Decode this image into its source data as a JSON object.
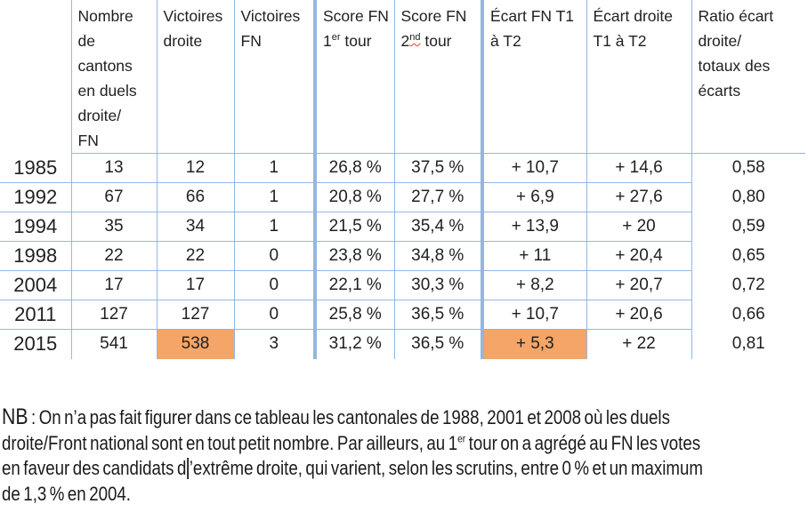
{
  "theme": {
    "border": "#92b7e2",
    "highlight": "#f5a567",
    "text": "#212121",
    "squiggle": "#e03c2d"
  },
  "table": {
    "columns": [
      {
        "id": "cantons-duels",
        "pre": "Nombre\nde\ncantons\nen duels\ndroite/\nFN"
      },
      {
        "id": "victoires-droite",
        "pre": "Victoires\ndroite"
      },
      {
        "id": "victoires-fn",
        "pre": "Victoires\nFN"
      },
      {
        "id": "score-fn-t1",
        "pre": "Score FN\n1",
        "sup": "er",
        "post": " tour"
      },
      {
        "id": "score-fn-t2",
        "pre": "Score FN\n2",
        "sup": "nd",
        "post": " tour",
        "sup_error": true
      },
      {
        "id": "ecart-fn-t1-t2",
        "pre": "Écart FN T1\nà T2"
      },
      {
        "id": "ecart-droite-t1-t2",
        "pre": "Écart droite\nT1 à T2"
      },
      {
        "id": "ratio-ecart",
        "pre": "Ratio écart\ndroite/\ntotaux des\nécarts"
      }
    ],
    "rows": [
      {
        "year": "1985",
        "cells": [
          "13",
          "12",
          "1",
          "26,8 %",
          "37,5 %",
          "+ 10,7",
          "+ 14,6",
          "0,58"
        ],
        "highlights": []
      },
      {
        "year": "1992",
        "cells": [
          "67",
          "66",
          "1",
          "20,8 %",
          "27,7 %",
          "+ 6,9",
          "+ 27,6",
          "0,80"
        ],
        "highlights": []
      },
      {
        "year": "1994",
        "cells": [
          "35",
          "34",
          "1",
          "21,5 %",
          "35,4 %",
          "+ 13,9",
          "+ 20",
          "0,59"
        ],
        "highlights": []
      },
      {
        "year": "1998",
        "cells": [
          "22",
          "22",
          "0",
          "23,8 %",
          "34,8 %",
          "+ 11",
          "+ 20,4",
          "0,65"
        ],
        "highlights": []
      },
      {
        "year": "2004",
        "cells": [
          "17",
          "17",
          "0",
          "22,1 %",
          "30,3 %",
          "+ 8,2",
          "+ 20,7",
          "0,72"
        ],
        "highlights": []
      },
      {
        "year": "2011",
        "cells": [
          "127",
          "127",
          "0",
          "25,8 %",
          "36,5 %",
          "+ 10,7",
          "+ 20,6",
          "0,66"
        ],
        "highlights": []
      },
      {
        "year": "2015",
        "cells": [
          "541",
          "538",
          "3",
          "31,2 %",
          "36,5 %",
          "+ 5,3",
          "+ 22",
          "0,81"
        ],
        "highlights": [
          1,
          5
        ]
      }
    ]
  },
  "note": {
    "label": "NB",
    "l1": " : On n’a pas fait figurer dans ce tableau les cantonales de 1988, 2001 et 2008 où les duels",
    "l2_pre": "droite/Front national sont en tout petit nombre. Par ailleurs, au 1",
    "l2_sup": "er",
    "l2_post": " tour on a agrégé au FN les votes",
    "l3_pre": "en faveur des candidats d",
    "l3_post": "’extrême droite, qui varient, selon les scrutins, entre 0 % et un maximum",
    "l4": "de 1,3 % en 2004."
  }
}
